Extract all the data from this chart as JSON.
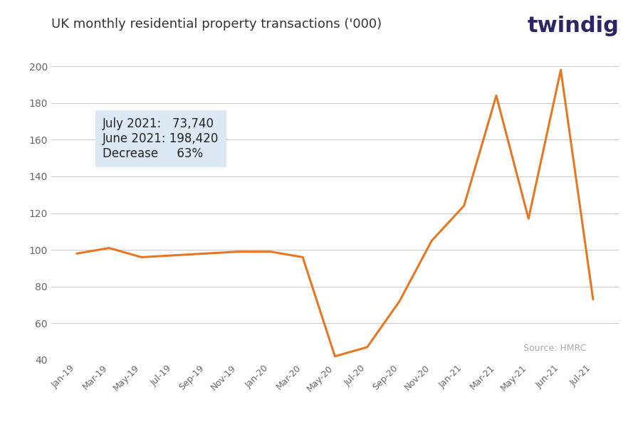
{
  "title": "UK monthly residential property transactions ('000)",
  "line_color": "#E87722",
  "background_color": "#ffffff",
  "grid_color": "#cccccc",
  "annotation_box_color": "#dce9f5",
  "source_text": "Source: HMRC",
  "annotation_line1": "July 2021:   73,740",
  "annotation_line2": "June 2021: 198,420",
  "annotation_line3": "Decrease     63%",
  "twindig_text": "twindig",
  "twindig_color_main": "#2b2767",
  "twindig_color_accent": "#E87722",
  "ylim": [
    40,
    205
  ],
  "yticks": [
    40,
    60,
    80,
    100,
    120,
    140,
    160,
    180,
    200
  ],
  "labels": [
    "Jan-19",
    "Mar-19",
    "May-19",
    "Jul-19",
    "Sep-19",
    "Nov-19",
    "Jan-20",
    "Mar-20",
    "May-20",
    "Jul-20",
    "Sep-20",
    "Nov-20",
    "Jan-21",
    "Mar-21",
    "May-21",
    "Jun-21",
    "Jul-21"
  ],
  "values": [
    98,
    101,
    96,
    97,
    98,
    99,
    99,
    96,
    42,
    47,
    72,
    105,
    124,
    184,
    117,
    198,
    73
  ],
  "title_fontsize": 13,
  "tick_fontsize": 10,
  "xtick_fontsize": 9,
  "annotation_fontsize": 12,
  "source_fontsize": 9,
  "twindig_fontsize": 22
}
